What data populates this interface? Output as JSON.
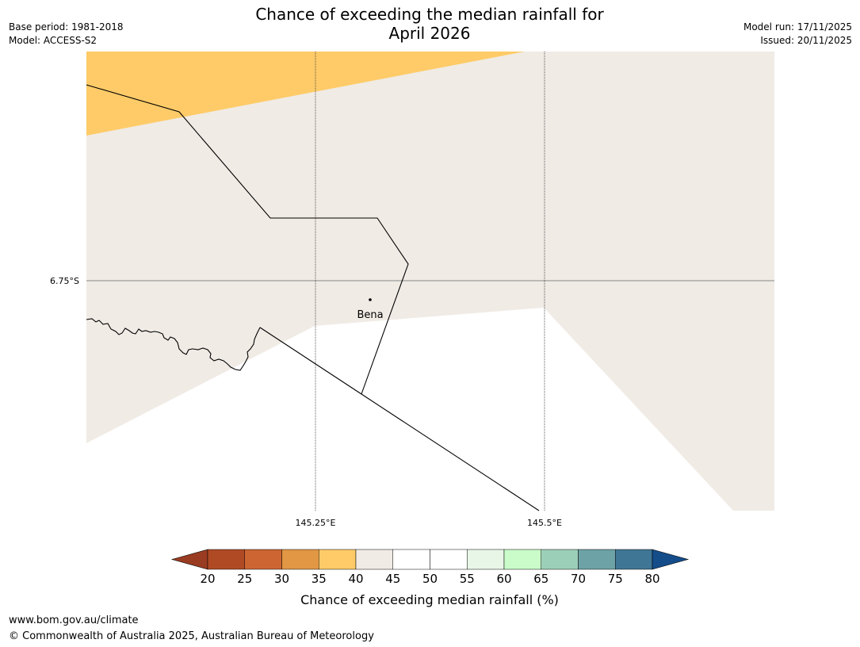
{
  "title": {
    "line1": "Chance of exceeding the median rainfall for",
    "line2": "April 2026"
  },
  "meta": {
    "base_period": "Base period: 1981-2018",
    "model": "Model: ACCESS-S2",
    "model_run": "Model run: 17/11/2025",
    "issued": "Issued: 20/11/2025"
  },
  "map": {
    "lat_label": "6.75°S",
    "lon_labels": [
      "145.25°E",
      "145.5°E"
    ],
    "place": "Bena",
    "colors": {
      "neutral": "#f0ebe5",
      "dry": "#fecb68",
      "white": "#ffffff",
      "graticule": "#888888",
      "boundary": "#000000"
    }
  },
  "legend": {
    "ticks": [
      "20",
      "25",
      "30",
      "35",
      "40",
      "45",
      "50",
      "55",
      "60",
      "65",
      "70",
      "75",
      "80"
    ],
    "colors": [
      "#9a3c22",
      "#b04a25",
      "#cc6532",
      "#e29744",
      "#fecb68",
      "#f0ebe5",
      "#ffffff",
      "#ffffff",
      "#e8f6e8",
      "#c9fcc9",
      "#9ccfb8",
      "#6da3a6",
      "#3f7696",
      "#144d8a"
    ],
    "label": "Chance of exceeding median rainfall (%)"
  },
  "footer": {
    "url": "www.bom.gov.au/climate",
    "copyright": "© Commonwealth of Australia 2025, Australian Bureau of Meteorology"
  }
}
